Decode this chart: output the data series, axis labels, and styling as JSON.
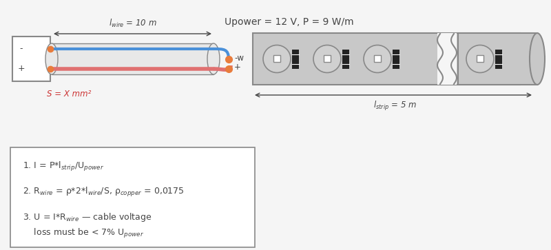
{
  "bg_color": "#f5f5f5",
  "title_text": "Upower = 12 V, P = 9 W/m",
  "wire_label": "l$_{wire}$ = 10 m",
  "s_label": "S = X mm²",
  "strip_label": "l$_{strip}$ = 5 m",
  "minus_label": "-w",
  "plus_label": "+",
  "minus_box": "-",
  "plus_box": "+",
  "formula1": "1. I = P*l$_{strip}$/U$_{power}$",
  "formula2": "2. R$_{wire}$ = ρ*2*l$_{wire}$/S, ρ$_{copper}$ = 0,0175",
  "formula3a": "3. U = I*R$_{wire}$ — cable voltage",
  "formula3b": "    loss must be < 7% U$_{power}$",
  "wire_blue": "#4a90d9",
  "wire_red": "#e07070",
  "dot_orange": "#e87c3c",
  "strip_color": "#c8c8c8",
  "strip_border": "#888888",
  "led_circle_color": "#d0d0d0",
  "led_black": "#222222",
  "box_color": "#ffffff",
  "text_dark": "#444444",
  "text_red": "#cc3333"
}
